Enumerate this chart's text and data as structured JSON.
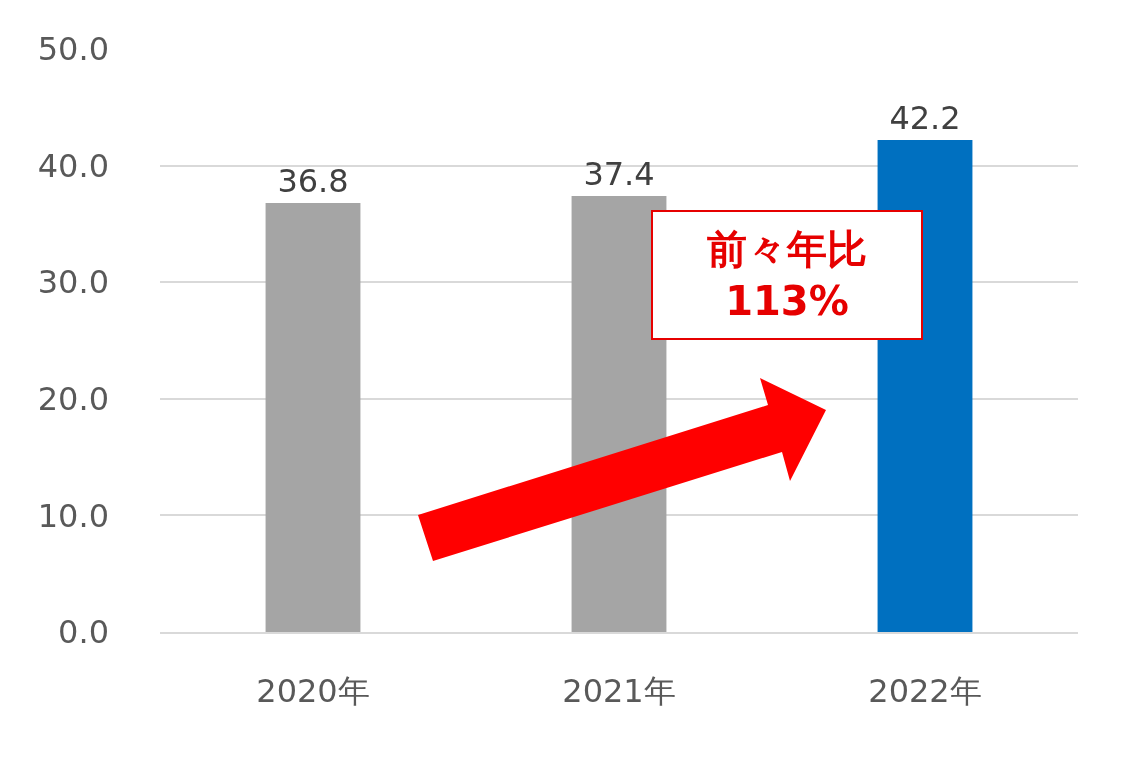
{
  "chart_data": {
    "type": "bar",
    "categories": [
      "2020年",
      "2021年",
      "2022年"
    ],
    "values": [
      36.8,
      37.4,
      42.2
    ],
    "colors": [
      "#a5a5a5",
      "#a5a5a5",
      "#0070c0"
    ],
    "ylim": [
      0,
      50
    ],
    "yticks": [
      {
        "value": 0,
        "label": "0.0"
      },
      {
        "value": 10,
        "label": "10.0"
      },
      {
        "value": 20,
        "label": "20.0"
      },
      {
        "value": 30,
        "label": "30.0"
      },
      {
        "value": 40,
        "label": "40.0"
      },
      {
        "value": 50,
        "label": "50.0"
      }
    ],
    "grid": "y",
    "data_labels": true,
    "annotations": [
      "前々年比\n113%"
    ]
  }
}
